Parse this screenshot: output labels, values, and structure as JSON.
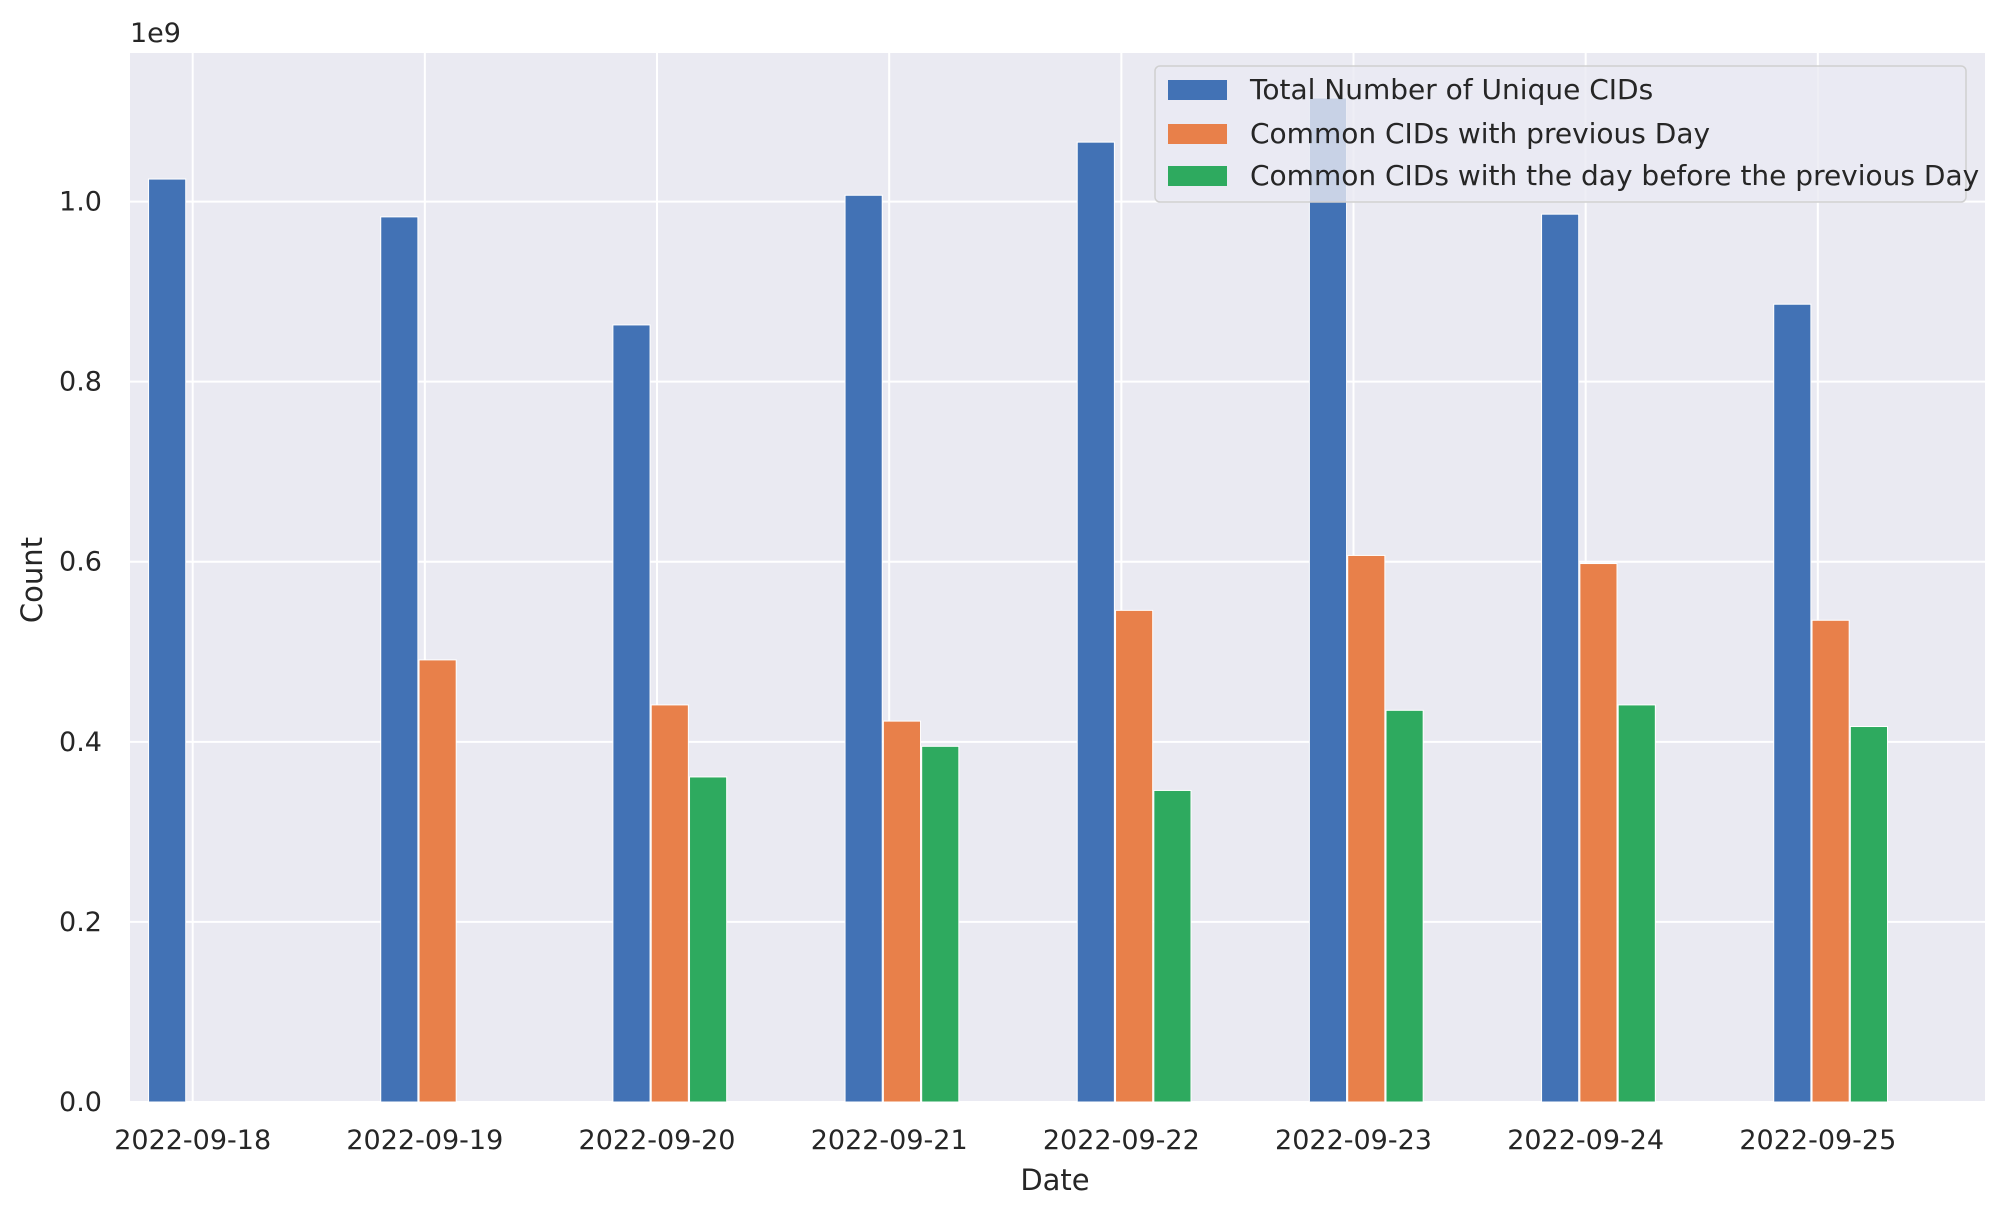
{
  "chart_data": {
    "type": "bar",
    "title": "",
    "xlabel": "Date",
    "ylabel": "Count",
    "y_offset_label": "1e9",
    "y_scale": 1000000000,
    "ylim": [
      0,
      1.165
    ],
    "yticks": [
      0.0,
      0.2,
      0.4,
      0.6,
      0.8,
      1.0
    ],
    "ytick_labels": [
      "0.0",
      "0.2",
      "0.4",
      "0.6",
      "0.8",
      "1.0"
    ],
    "grid": true,
    "legend_position": "top-right",
    "categories": [
      "2022-09-18",
      "2022-09-19",
      "2022-09-20",
      "2022-09-21",
      "2022-09-22",
      "2022-09-23",
      "2022-09-24",
      "2022-09-25"
    ],
    "series": [
      {
        "name": "Total Number of Unique CIDs",
        "color": "#4272b5",
        "values": [
          1.025,
          0.983,
          0.863,
          1.007,
          1.066,
          1.115,
          0.986,
          0.886
        ]
      },
      {
        "name": "Common CIDs with previous Day",
        "color": "#e8804a",
        "values": [
          null,
          0.491,
          0.441,
          0.423,
          0.546,
          0.607,
          0.598,
          0.535
        ]
      },
      {
        "name": "Common CIDs with the day before the previous Day",
        "color": "#2eaa5f",
        "values": [
          null,
          null,
          0.361,
          0.395,
          0.346,
          0.435,
          0.441,
          0.417
        ]
      }
    ]
  }
}
